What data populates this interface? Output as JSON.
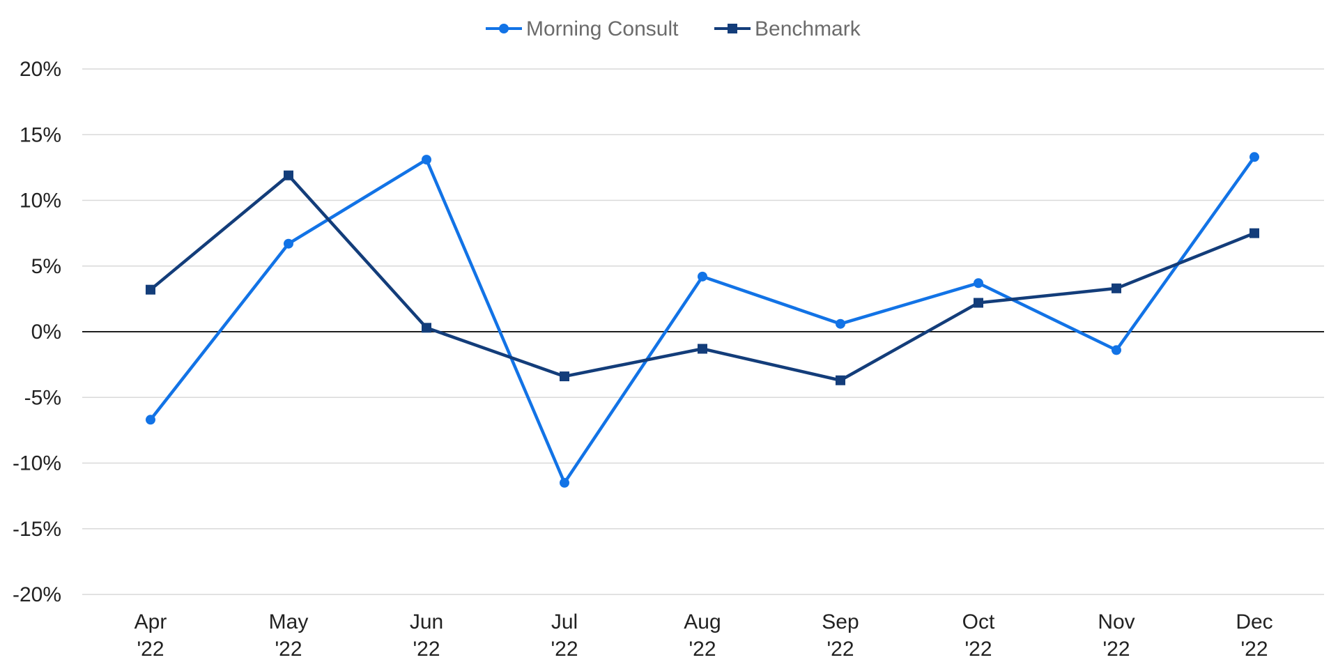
{
  "chart_data": {
    "type": "line",
    "title": "",
    "xlabel": "",
    "ylabel": "",
    "categories": [
      [
        "Apr",
        "'22"
      ],
      [
        "May",
        "'22"
      ],
      [
        "Jun",
        "'22"
      ],
      [
        "Jul",
        "'22"
      ],
      [
        "Aug",
        "'22"
      ],
      [
        "Sep",
        "'22"
      ],
      [
        "Oct",
        "'22"
      ],
      [
        "Nov",
        "'22"
      ],
      [
        "Dec",
        "'22"
      ]
    ],
    "y_ticks": [
      20,
      15,
      10,
      5,
      0,
      -5,
      -10,
      -15,
      -20
    ],
    "y_tick_labels": [
      "20%",
      "15%",
      "10%",
      "5%",
      "0%",
      "-5%",
      "-10%",
      "-15%",
      "-20%"
    ],
    "ylim": [
      -20,
      20
    ],
    "grid": true,
    "legend_position": "top-center",
    "series": [
      {
        "name": "Morning Consult",
        "color": "#1273e6",
        "marker": "circle",
        "values": [
          -6.7,
          6.7,
          13.1,
          -11.5,
          4.2,
          0.6,
          3.7,
          -1.4,
          13.3
        ]
      },
      {
        "name": "Benchmark",
        "color": "#133d7a",
        "marker": "square",
        "values": [
          3.2,
          11.9,
          0.3,
          -3.4,
          -1.3,
          -3.7,
          2.2,
          3.3,
          7.5
        ]
      }
    ]
  }
}
